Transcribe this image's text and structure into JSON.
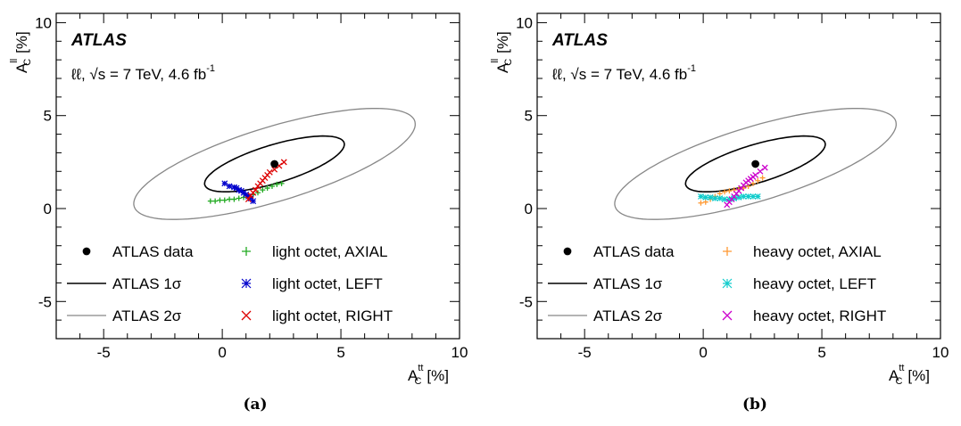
{
  "chart_data": [
    {
      "type": "scatter",
      "sublabel": "(a)",
      "atlas_label": "ATLAS",
      "energy_label": "ℓℓ, √s = 7 TeV,  4.6 fb",
      "energy_sup": "-1",
      "xlabel_main": "A",
      "xlabel_sup": "tt",
      "xlabel_sub": "C",
      "xlabel_unit": "[%]",
      "ylabel_main": "A",
      "ylabel_sup": "ll",
      "ylabel_sub": "C",
      "ylabel_unit": "[%]",
      "xlim": [
        -7,
        10
      ],
      "ylim": [
        -7,
        10.5
      ],
      "xticks": [
        -5,
        0,
        5,
        10
      ],
      "xtick_labels": [
        "-5",
        "0",
        "5",
        "10"
      ],
      "yticks": [
        -5,
        0,
        5,
        10
      ],
      "ytick_labels": [
        "-5",
        "0",
        "5",
        "10"
      ],
      "grid": false,
      "legend_position": "bottom",
      "data_point": {
        "x": 2.2,
        "y": 2.4
      },
      "ellipses": [
        {
          "name": "ATLAS 1σ",
          "cx": 2.2,
          "cy": 2.4,
          "semi_major": 3.15,
          "semi_minor": 1.0,
          "angle_deg": 22,
          "color": "#000000"
        },
        {
          "name": "ATLAS 2σ",
          "cx": 2.2,
          "cy": 2.4,
          "semi_major": 6.35,
          "semi_minor": 1.95,
          "angle_deg": 22,
          "color": "#888888"
        }
      ],
      "legend": [
        {
          "label": "ATLAS data",
          "marker": "dot",
          "color": "#000000"
        },
        {
          "label": "ATLAS 1σ",
          "marker": "line",
          "color": "#000000"
        },
        {
          "label": "ATLAS 2σ",
          "marker": "line",
          "color": "#888888"
        },
        {
          "label": "light octet, AXIAL",
          "marker": "plus",
          "color": "#22aa22"
        },
        {
          "label": "light octet, LEFT",
          "marker": "star",
          "color": "#0000cc"
        },
        {
          "label": "light octet, RIGHT",
          "marker": "cross",
          "color": "#dd0000"
        }
      ],
      "series": [
        {
          "name": "light octet, AXIAL",
          "marker": "plus",
          "color": "#22aa22",
          "x": [
            -0.5,
            -0.3,
            -0.1,
            0.1,
            0.3,
            0.5,
            0.7,
            0.9,
            1.1,
            1.3,
            1.5,
            1.7,
            1.9,
            2.1,
            2.3,
            2.5
          ],
          "y": [
            0.4,
            0.4,
            0.45,
            0.45,
            0.5,
            0.5,
            0.55,
            0.6,
            0.65,
            0.75,
            0.85,
            1.0,
            1.1,
            1.2,
            1.3,
            1.35
          ]
        },
        {
          "name": "light octet, LEFT",
          "marker": "star",
          "color": "#0000cc",
          "x": [
            0.1,
            0.3,
            0.5,
            0.6,
            0.7,
            0.8,
            0.9,
            1.0,
            1.1,
            1.2,
            1.3
          ],
          "y": [
            1.35,
            1.2,
            1.15,
            1.1,
            1.0,
            0.95,
            0.85,
            0.75,
            0.65,
            0.55,
            0.4
          ]
        },
        {
          "name": "light octet, RIGHT",
          "marker": "cross",
          "color": "#dd0000",
          "x": [
            1.1,
            1.2,
            1.3,
            1.4,
            1.5,
            1.6,
            1.7,
            1.8,
            1.9,
            2.0,
            2.2,
            2.4,
            2.6
          ],
          "y": [
            0.5,
            0.7,
            0.85,
            1.0,
            1.2,
            1.35,
            1.5,
            1.65,
            1.8,
            1.95,
            2.1,
            2.3,
            2.5
          ]
        }
      ]
    },
    {
      "type": "scatter",
      "sublabel": "(b)",
      "atlas_label": "ATLAS",
      "energy_label": "ℓℓ, √s = 7 TeV,  4.6 fb",
      "energy_sup": "-1",
      "xlabel_main": "A",
      "xlabel_sup": "tt",
      "xlabel_sub": "C",
      "xlabel_unit": "[%]",
      "ylabel_main": "A",
      "ylabel_sup": "ll",
      "ylabel_sub": "C",
      "ylabel_unit": "[%]",
      "xlim": [
        -7,
        10
      ],
      "ylim": [
        -7,
        10.5
      ],
      "xticks": [
        -5,
        0,
        5,
        10
      ],
      "xtick_labels": [
        "-5",
        "0",
        "5",
        "10"
      ],
      "yticks": [
        -5,
        0,
        5,
        10
      ],
      "ytick_labels": [
        "-5",
        "0",
        "5",
        "10"
      ],
      "grid": false,
      "legend_position": "bottom",
      "data_point": {
        "x": 2.2,
        "y": 2.4
      },
      "ellipses": [
        {
          "name": "ATLAS 1σ",
          "cx": 2.2,
          "cy": 2.4,
          "semi_major": 3.15,
          "semi_minor": 1.0,
          "angle_deg": 22,
          "color": "#000000"
        },
        {
          "name": "ATLAS 2σ",
          "cx": 2.2,
          "cy": 2.4,
          "semi_major": 6.35,
          "semi_minor": 1.95,
          "angle_deg": 22,
          "color": "#888888"
        }
      ],
      "legend": [
        {
          "label": "ATLAS data",
          "marker": "dot",
          "color": "#000000"
        },
        {
          "label": "ATLAS 1σ",
          "marker": "line",
          "color": "#000000"
        },
        {
          "label": "ATLAS 2σ",
          "marker": "line",
          "color": "#888888"
        },
        {
          "label": "heavy octet, AXIAL",
          "marker": "plus",
          "color": "#ff9933"
        },
        {
          "label": "heavy octet, LEFT",
          "marker": "star",
          "color": "#11cccc"
        },
        {
          "label": "heavy octet, RIGHT",
          "marker": "cross",
          "color": "#cc00cc"
        }
      ],
      "series": [
        {
          "name": "heavy octet, AXIAL",
          "marker": "plus",
          "color": "#ff9933",
          "x": [
            -0.1,
            0.1,
            0.3,
            0.5,
            0.7,
            0.9,
            1.1,
            1.3,
            1.5,
            1.7,
            1.9,
            2.1,
            2.3,
            2.5
          ],
          "y": [
            0.3,
            0.35,
            0.5,
            0.65,
            0.8,
            0.9,
            0.95,
            1.0,
            1.05,
            1.1,
            1.2,
            1.35,
            1.5,
            1.65
          ]
        },
        {
          "name": "heavy octet, LEFT",
          "marker": "star",
          "color": "#11cccc",
          "x": [
            -0.1,
            0.1,
            0.3,
            0.5,
            0.7,
            0.9,
            1.1,
            1.3,
            1.5,
            1.7,
            1.9,
            2.1,
            2.3
          ],
          "y": [
            0.65,
            0.6,
            0.6,
            0.55,
            0.55,
            0.5,
            0.5,
            0.55,
            0.6,
            0.65,
            0.65,
            0.65,
            0.65
          ]
        },
        {
          "name": "heavy octet, RIGHT",
          "marker": "cross",
          "color": "#cc00cc",
          "x": [
            1.0,
            1.1,
            1.2,
            1.3,
            1.4,
            1.5,
            1.6,
            1.7,
            1.8,
            1.9,
            2.0,
            2.1,
            2.2,
            2.4,
            2.6
          ],
          "y": [
            0.2,
            0.35,
            0.5,
            0.65,
            0.8,
            0.95,
            1.1,
            1.25,
            1.4,
            1.5,
            1.6,
            1.7,
            1.8,
            2.0,
            2.2
          ]
        }
      ]
    }
  ]
}
